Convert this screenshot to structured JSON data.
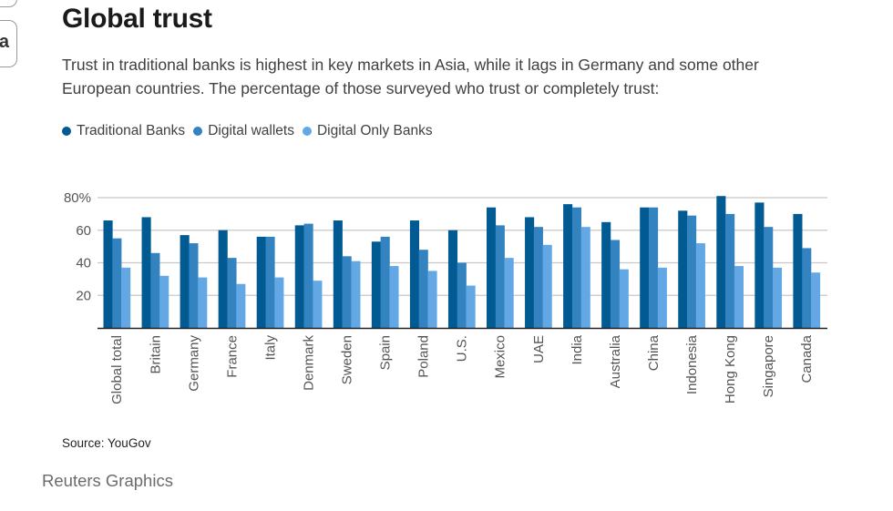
{
  "page": {
    "edge_glyph": "a",
    "title": "Global trust",
    "subtitle": "Trust in traditional banks is highest in key markets in Asia, while it lags in Germany and some other European countries. The percentage of those surveyed who trust or completely trust:",
    "source": "Source: YouGov",
    "credit": "Reuters Graphics"
  },
  "chart_data": {
    "type": "bar",
    "title": "Global trust",
    "subtitle": "Trust in traditional banks is highest in key markets in Asia, while it lags in Germany and some other European countries. The percentage of those surveyed who trust or completely trust:",
    "xlabel": "",
    "ylabel": "",
    "ylim": [
      0,
      80
    ],
    "yticks": [
      20,
      40,
      60,
      80
    ],
    "ytick_labels": [
      "20",
      "40",
      "60",
      "80%"
    ],
    "grid": true,
    "legend_position": "top-left",
    "categories": [
      "Global total",
      "Britain",
      "Germany",
      "France",
      "Italy",
      "Denmark",
      "Sweden",
      "Spain",
      "Poland",
      "U.S.",
      "Mexico",
      "UAE",
      "India",
      "Australia",
      "China",
      "Indonesia",
      "Hong Kong",
      "Singapore",
      "Canada"
    ],
    "series": [
      {
        "name": "Traditional Banks",
        "color": "#015a92",
        "values": [
          66,
          68,
          57,
          60,
          56,
          63,
          66,
          53,
          66,
          60,
          74,
          68,
          76,
          65,
          74,
          72,
          81,
          77,
          70
        ]
      },
      {
        "name": "Digital wallets",
        "color": "#3383c0",
        "values": [
          55,
          46,
          52,
          43,
          56,
          64,
          44,
          56,
          48,
          40,
          63,
          62,
          74,
          54,
          74,
          69,
          70,
          62,
          49
        ]
      },
      {
        "name": "Digital Only Banks",
        "color": "#63a8e5",
        "values": [
          37,
          32,
          31,
          27,
          31,
          29,
          41,
          38,
          35,
          26,
          43,
          51,
          62,
          36,
          37,
          52,
          38,
          37,
          34
        ]
      }
    ],
    "source": "Source: YouGov"
  }
}
